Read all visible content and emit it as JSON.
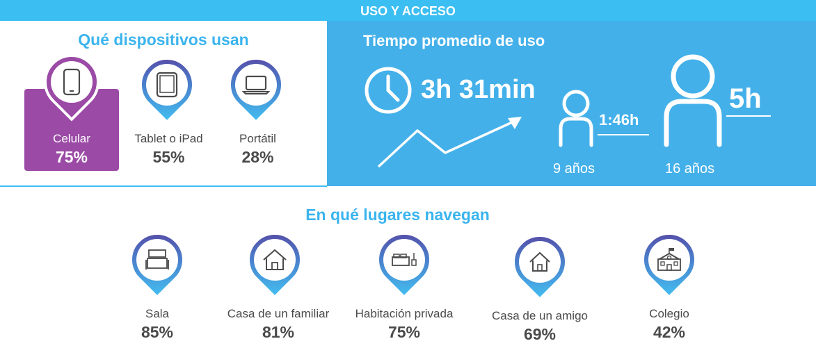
{
  "banner": {
    "title": "USO Y ACCESO"
  },
  "devices": {
    "title": "Qué dispositivos usan",
    "items": [
      {
        "label": "Celular",
        "percent": "75%",
        "icon": "smartphone-icon",
        "selected": true
      },
      {
        "label": "Tablet o iPad",
        "percent": "55%",
        "icon": "tablet-icon",
        "selected": false
      },
      {
        "label": "Portátil",
        "percent": "28%",
        "icon": "laptop-icon",
        "selected": false
      }
    ]
  },
  "usage": {
    "title": "Tiempo promedio de uso",
    "average": "3h 31min",
    "ages": [
      {
        "age": "9 años",
        "time": "1:46h"
      },
      {
        "age": "16 años",
        "time": "5h"
      }
    ]
  },
  "places": {
    "title": "En qué lugares navegan",
    "items": [
      {
        "label": "Sala",
        "percent": "85%",
        "icon": "living-room-icon"
      },
      {
        "label": "Casa de un familiar",
        "percent": "81%",
        "icon": "house-icon"
      },
      {
        "label": "Habitación privada",
        "percent": "75%",
        "icon": "bedroom-icon"
      },
      {
        "label": "Casa de un amigo",
        "percent": "69%",
        "icon": "small-house-icon"
      },
      {
        "label": "Colegio",
        "percent": "42%",
        "icon": "school-icon"
      }
    ]
  },
  "colors": {
    "banner": "#3bbef2",
    "panel": "#44b0ea",
    "selected": "#9b4aa6",
    "title": "#3bb4ee",
    "text": "#4a4a4a"
  }
}
